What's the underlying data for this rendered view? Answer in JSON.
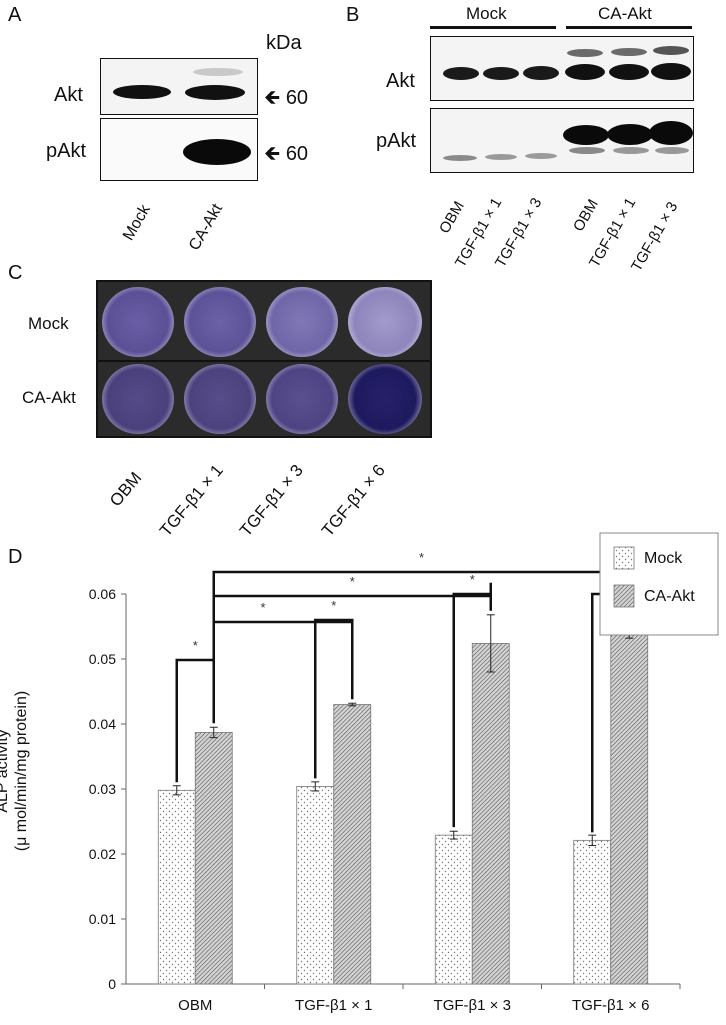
{
  "panels": {
    "a": {
      "letter": "A",
      "unit": "kDa",
      "rows": [
        {
          "label": "Akt",
          "marker": "60"
        },
        {
          "label": "pAkt",
          "marker": "60"
        }
      ],
      "lanes": [
        "Mock",
        "CA-Akt"
      ]
    },
    "b": {
      "letter": "B",
      "groups": [
        "Mock",
        "CA-Akt"
      ],
      "rows": [
        "Akt",
        "pAkt"
      ],
      "lanes": [
        "OBM",
        "TGF-β1 × 1",
        "TGF-β1 × 3",
        "OBM",
        "TGF-β1 × 1",
        "TGF-β1 × 3"
      ]
    },
    "c": {
      "letter": "C",
      "rows": [
        "Mock",
        "CA-Akt"
      ],
      "lanes": [
        "OBM",
        "TGF-β1 × 1",
        "TGF-β1 × 3",
        "TGF-β1 × 6"
      ]
    },
    "d": {
      "letter": "D"
    }
  },
  "chart_data": {
    "type": "bar",
    "ylabel": "ALP activity",
    "ylabel2": "(μ mol/min/mg protein)",
    "categories": [
      "OBM",
      "TGF-β1 × 1",
      "TGF-β1 × 3",
      "TGF-β1 × 6"
    ],
    "series": [
      {
        "name": "Mock",
        "values": [
          0.0298,
          0.0304,
          0.0229,
          0.0221
        ],
        "errors": [
          0.0007,
          0.0007,
          0.0006,
          0.0008
        ],
        "pattern": "dots"
      },
      {
        "name": "CA-Akt",
        "values": [
          0.0387,
          0.043,
          0.0524,
          0.0545
        ],
        "errors": [
          0.0008,
          0.0002,
          0.0044,
          0.0013
        ],
        "pattern": "hatch"
      }
    ],
    "ylim": [
      0,
      0.06
    ],
    "yticks": [
      "0",
      "0.01",
      "0.02",
      "0.03",
      "0.04",
      "0.05",
      "0.06"
    ],
    "legend_position": "top-right",
    "grid": false,
    "significance_marker": "*"
  }
}
